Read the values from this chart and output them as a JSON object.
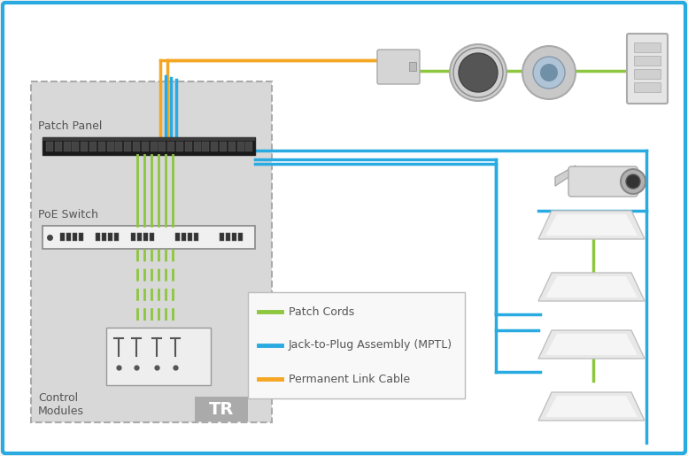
{
  "bg_color": "#f2f2f2",
  "border_color": "#29abe2",
  "border_lw": 3,
  "green_color": "#8dc63f",
  "blue_color": "#29abe2",
  "orange_color": "#f5a623",
  "gray_box_color": "#d8d8d8",
  "gray_box_border": "#aaaaaa",
  "legend_items": [
    {
      "label": "Patch Cords",
      "color": "#8dc63f"
    },
    {
      "label": "Jack-to-Plug Assembly (MPTL)",
      "color": "#29abe2"
    },
    {
      "label": "Permanent Link Cable",
      "color": "#f5a623"
    }
  ],
  "labels": {
    "patch_panel": "Patch Panel",
    "poe_switch": "PoE Switch",
    "control_modules": "Control\nModules",
    "tr": "TR"
  },
  "figw": 7.77,
  "figh": 5.15,
  "dpi": 100
}
